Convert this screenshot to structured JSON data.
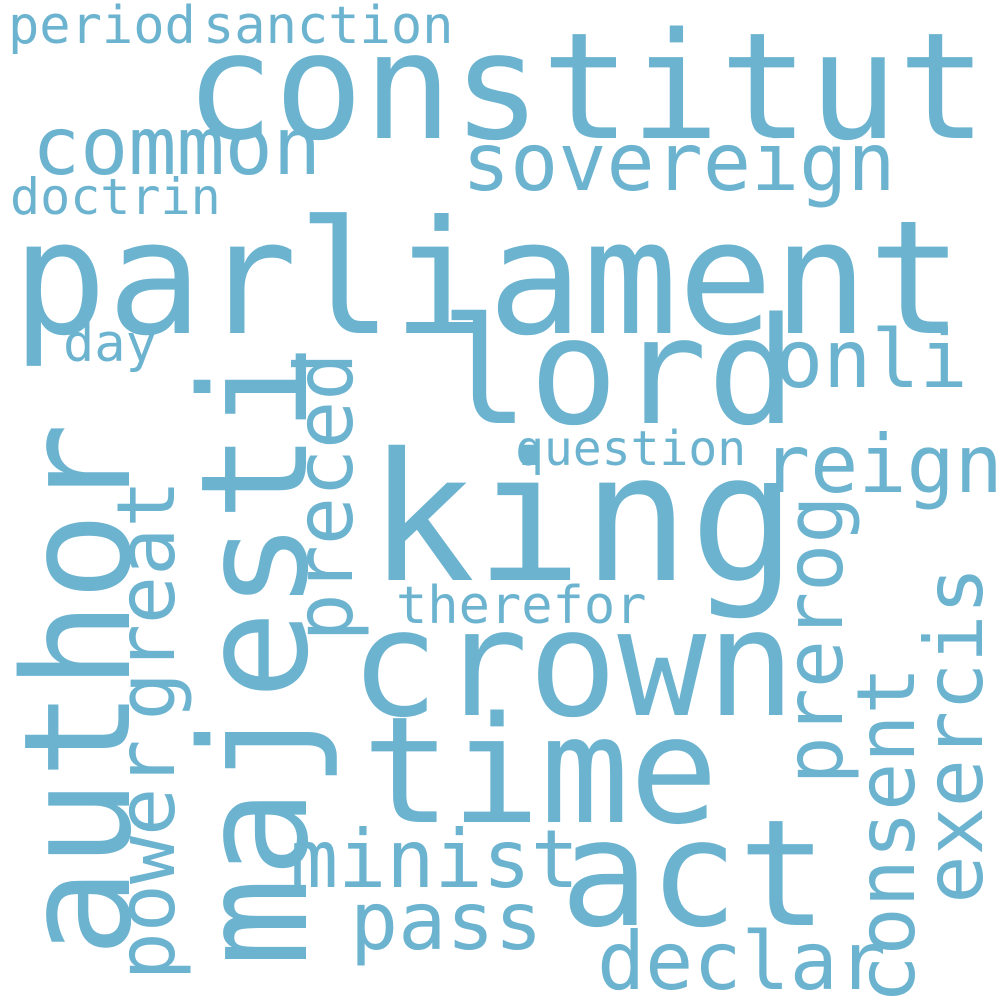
{
  "color": "#6cb3d0",
  "words": {
    "parliament": "parliament",
    "constitut": "constitut",
    "king": "king",
    "crown": "crown",
    "majesti": "majesti",
    "author": "author",
    "time": "time",
    "act": "act",
    "lord": "lord",
    "sovereign": "sovereign",
    "common": "common",
    "onli": "onli",
    "reign": "reign",
    "great": "great",
    "power": "power",
    "preced": "preced",
    "prerog": "prerog",
    "consent": "consent",
    "exercis": "exercis",
    "minist": "minist",
    "pass": "pass",
    "declar": "declar",
    "doctrin": "doctrin",
    "period": "period",
    "sanction": "sanction",
    "day": "day",
    "question": "question",
    "therefor": "therefor"
  }
}
